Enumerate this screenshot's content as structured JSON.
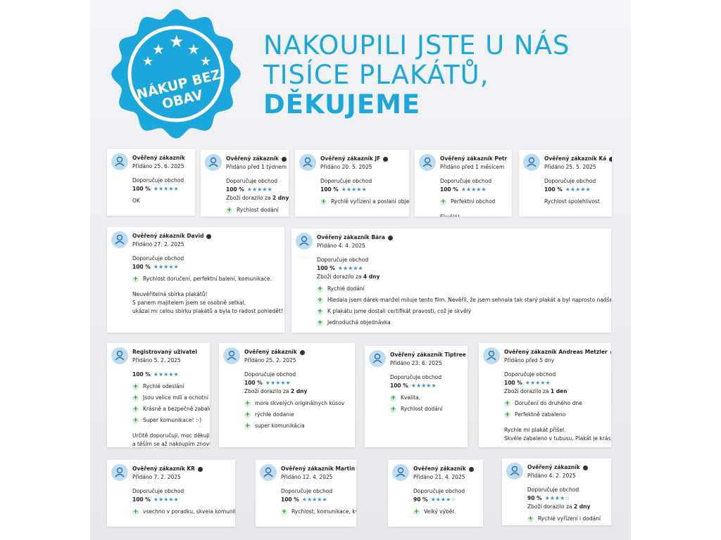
{
  "badge": {
    "lines": [
      "NÁKUP BEZ",
      "OBAV"
    ]
  },
  "headline": {
    "lines": [
      "NAKOUPILI JSTE U NÁS",
      "TISÍCE PLAKÁTŮ,",
      "DĚKUJEME"
    ]
  },
  "reviews": [
    {
      "name": "Ověřený zákazník",
      "verified": false,
      "date": "Přidáno 25. 6. 2025",
      "recommend": "Doporučuje obchod",
      "rating": "100 %",
      "pros": [],
      "text": [
        "OK"
      ]
    },
    {
      "name": "Ověřený zákazník",
      "verified": true,
      "date": "Přidáno před 1 týdnem",
      "recommend": "Doporučuje obchod",
      "rating": "100 %",
      "delivery": [
        "Zboží dorazilo za",
        "2 dny"
      ],
      "pros": [
        "Rychlost dodání"
      ],
      "text": []
    },
    {
      "name": "Ověřený zákazník JF",
      "verified": true,
      "date": "Přidáno 20. 5. 2025",
      "recommend": "Doporučuje obchod",
      "rating": "100 %",
      "pros": [
        "Rychlé vyřízení a poslaní objednávky"
      ],
      "text": []
    },
    {
      "name": "Ověřený zákazník Petr",
      "verified": false,
      "date": "Přidáno před 1 měsícem",
      "recommend": "Doporučuje obchod",
      "rating": "100 %",
      "pros": [
        "Perfektní obchod"
      ],
      "text": [
        "Skvělé!"
      ]
    },
    {
      "name": "Ověřený zákazník Ká",
      "verified": true,
      "date": "Přidáno 25. 5. 2025",
      "recommend": "Doporučuje obchod",
      "rating": "100 %",
      "pros": [],
      "text": [
        "Rychlost spolehlivost"
      ]
    },
    {
      "name": "Ověřený zákazník David",
      "verified": true,
      "date": "Přidáno 27. 2. 2025",
      "recommend": "Doporučuje obchod",
      "rating": "100 %",
      "pros": [
        "Rychlost doručení, perfektní balení, komunikace."
      ],
      "text": [
        "Neuvěřitelná sbírka plakátů!",
        "S panem majitelem jsem se osobně setkal,",
        "ukázal mi celou sbírku plakátů a byla to radost pohledět!"
      ]
    },
    {
      "name": "Ověřený zákazník Bára",
      "verified": true,
      "date": "Přidáno 4. 4. 2025",
      "recommend": "Doporučuje obchod",
      "rating": "100 %",
      "delivery": [
        "Zboží dorazilo za",
        "4 dny"
      ],
      "pros": [
        "Rychlé dodání",
        "Hledala jsem dárek-manžel miluje tento film. Nevěřil, že jsem sehnala tak starý plakát a byl naprosto nadšený!",
        "K plakátu jsme dostali certifikát pravosti, což je skvělý",
        "Jednoduchá objednávka"
      ],
      "text": []
    },
    {
      "name": "Registrovaný uživatel",
      "verified": false,
      "date": "Přidáno 5. 2. 2025",
      "rating": "100 %",
      "pros": [
        "Rychlé odeslání",
        "Jsou velice milí a ochotní",
        "Krásně a bezpečně zabaleno",
        "Super komunikace! :-)"
      ],
      "text": [
        "Určitě doporučuji, moc děkuji",
        "a těším se až nakoupím znovu!:-)"
      ]
    },
    {
      "name": "Ověřený zákazník",
      "verified": true,
      "date": "Přidáno 25. 2. 2025",
      "recommend": "Doporučuje obchod",
      "rating": "100 %",
      "delivery": [
        "Zboží dorazilo za",
        "2 dny"
      ],
      "pros": [
        "more skvelých originálnych kúsov",
        "rýchle dodanie",
        "super komunikácia"
      ],
      "text": []
    },
    {
      "name": "Ověřený zákazník Tiptree",
      "verified": true,
      "date": "Přidáno 23. 6. 2025",
      "recommend": "Doporučuje obchod",
      "rating": "100 %",
      "pros": [
        "Kvalita,",
        "Rychlost dodání"
      ],
      "text": []
    },
    {
      "name": "Ověřený zákazník Andreas Metzler",
      "verified": true,
      "date": "Přidáno před 5 dny",
      "recommend": "Doporučuje obchod",
      "rating": "100 %",
      "delivery": [
        "Zboží dorazilo za",
        "1 den"
      ],
      "pros": [
        "Doručení do druhého dne",
        "Perfektně zabaleno"
      ],
      "text": [
        "Rychle mi plakát přišel.",
        "Skvěle zabaleno v tubusu. Plakát je krásnej!"
      ]
    },
    {
      "name": "Ověřený zákazník KR",
      "verified": true,
      "date": "Přidáno 7. 2. 2025",
      "recommend": "Doporučuje obchod",
      "rating": "100 %",
      "pros": [
        "vsechno v poradku, skvela komunikace"
      ],
      "text": []
    },
    {
      "name": "Ověřený zákazník Martin",
      "verified": true,
      "date": "Přidáno 12. 4. 2025",
      "recommend": "Doporučuje obchod",
      "rating": "100 %",
      "pros": [
        "Rychlost, komunikace, kvalita"
      ],
      "text": []
    },
    {
      "name": "Ověřený zákazník",
      "verified": true,
      "date": "Přidáno 21. 4. 2025",
      "recommend": "Doporučuje obchod",
      "rating": "90 %",
      "pros": [
        "Velký výběr."
      ],
      "text": []
    },
    {
      "name": "Ověřený zákazník",
      "verified": true,
      "date": "Přidáno 4. 2. 2025",
      "recommend": "Doporučuje obchod",
      "rating": "90 %",
      "delivery": [
        "Zboží dorazilo za",
        "2 dny"
      ],
      "pros": [
        "Rychlé vyřízení i dodání"
      ],
      "text": []
    }
  ]
}
